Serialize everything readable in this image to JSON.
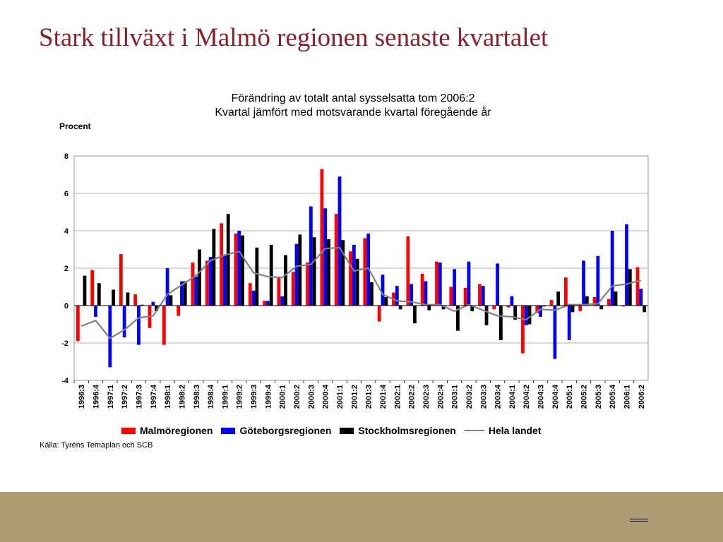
{
  "slide": {
    "title": "Stark tillväxt i Malmö regionen senaste kvartalet",
    "source": "Källa: Tyréns Temaplan och SCB",
    "colors": {
      "title": "#8b2027",
      "footer_band": "#b09c74"
    }
  },
  "chart_data": {
    "type": "bar",
    "title": "Förändring av totalt antal sysselsatta tom 2006:2",
    "subtitle": "Kvartal jämfört med motsvarande kvartal föregående år",
    "ylabel": "Procent",
    "xlabel": "",
    "ylim": [
      -4,
      8
    ],
    "yticks": [
      8,
      6,
      4,
      2,
      0,
      -2,
      -4
    ],
    "grid": true,
    "legend_position": "bottom",
    "categories": [
      "1996:3",
      "1996:4",
      "1997:1",
      "1997:2",
      "1997:3",
      "1997:4",
      "1998:1",
      "1998:2",
      "1998:3",
      "1998:4",
      "1999:1",
      "1999:2",
      "1999:3",
      "1999:4",
      "2000:1",
      "2000:2",
      "2000:3",
      "2000:4",
      "2001:1",
      "2001:2",
      "2001:3",
      "2001:4",
      "2002:1",
      "2002:2",
      "2002:3",
      "2002:4",
      "2003:1",
      "2003:2",
      "2003:3",
      "2003:4",
      "2004:1",
      "2004:2",
      "2004:3",
      "2004:4",
      "2005:1",
      "2005:2",
      "2005:3",
      "2005:4",
      "2006:1",
      "2006:2"
    ],
    "series": [
      {
        "name": "Malmöregionen",
        "type": "bar",
        "color": "#ff0000",
        "values": [
          -1.9,
          1.9,
          0,
          2.75,
          0.6,
          -1.2,
          -2.1,
          -0.55,
          2.3,
          2.4,
          4.4,
          3.85,
          1.2,
          0.25,
          1.5,
          1.8,
          2.3,
          7.3,
          4.9,
          2.9,
          3.6,
          -0.85,
          0.7,
          3.7,
          1.7,
          2.35,
          1.0,
          0.95,
          1.15,
          -0.2,
          -0.1,
          -2.55,
          -0.4,
          0.3,
          1.5,
          -0.3,
          0.45,
          0.35,
          -0.05,
          2.05
        ]
      },
      {
        "name": "Göteborgsregionen",
        "type": "bar",
        "color": "#0000ff",
        "values": [
          0,
          -0.6,
          -3.3,
          -1.7,
          -2.1,
          0.2,
          2.0,
          1.3,
          1.55,
          2.6,
          2.7,
          4.0,
          0.8,
          0.25,
          0.5,
          3.3,
          5.3,
          5.2,
          6.9,
          3.25,
          3.85,
          1.65,
          1.05,
          1.15,
          1.3,
          2.3,
          1.95,
          2.35,
          1.05,
          2.25,
          0.5,
          -1.05,
          -0.6,
          -2.85,
          -1.85,
          2.4,
          2.65,
          4.0,
          4.35,
          0.9
        ]
      },
      {
        "name": "Stockholmsregionen",
        "type": "bar",
        "color": "#000000",
        "values": [
          1.6,
          1.2,
          0.85,
          0.7,
          0.05,
          -0.3,
          0.55,
          1.3,
          3.0,
          4.1,
          4.9,
          3.75,
          3.1,
          3.25,
          2.7,
          3.8,
          3.65,
          3.55,
          3.5,
          2.5,
          1.25,
          0.45,
          -0.2,
          -0.95,
          -0.25,
          -0.2,
          -1.35,
          -0.3,
          -1.05,
          -1.85,
          -0.75,
          -1.0,
          -0.05,
          0.75,
          -0.35,
          0.5,
          -0.2,
          0.75,
          1.95,
          -0.35
        ]
      },
      {
        "name": "Hela landet",
        "type": "line",
        "color": "#808080",
        "values": [
          -1.1,
          -0.8,
          -1.75,
          -1.3,
          -0.65,
          -0.55,
          0.6,
          1.1,
          1.6,
          2.4,
          2.7,
          2.9,
          1.75,
          1.55,
          1.5,
          2.1,
          2.2,
          3.05,
          3.1,
          1.85,
          2.0,
          0.6,
          0.25,
          0.2,
          0.05,
          0.05,
          -0.3,
          0.05,
          -0.25,
          -0.55,
          -0.6,
          -0.75,
          -0.2,
          -0.25,
          0.05,
          0.05,
          0.1,
          1.05,
          1.15,
          1.35
        ]
      }
    ]
  }
}
